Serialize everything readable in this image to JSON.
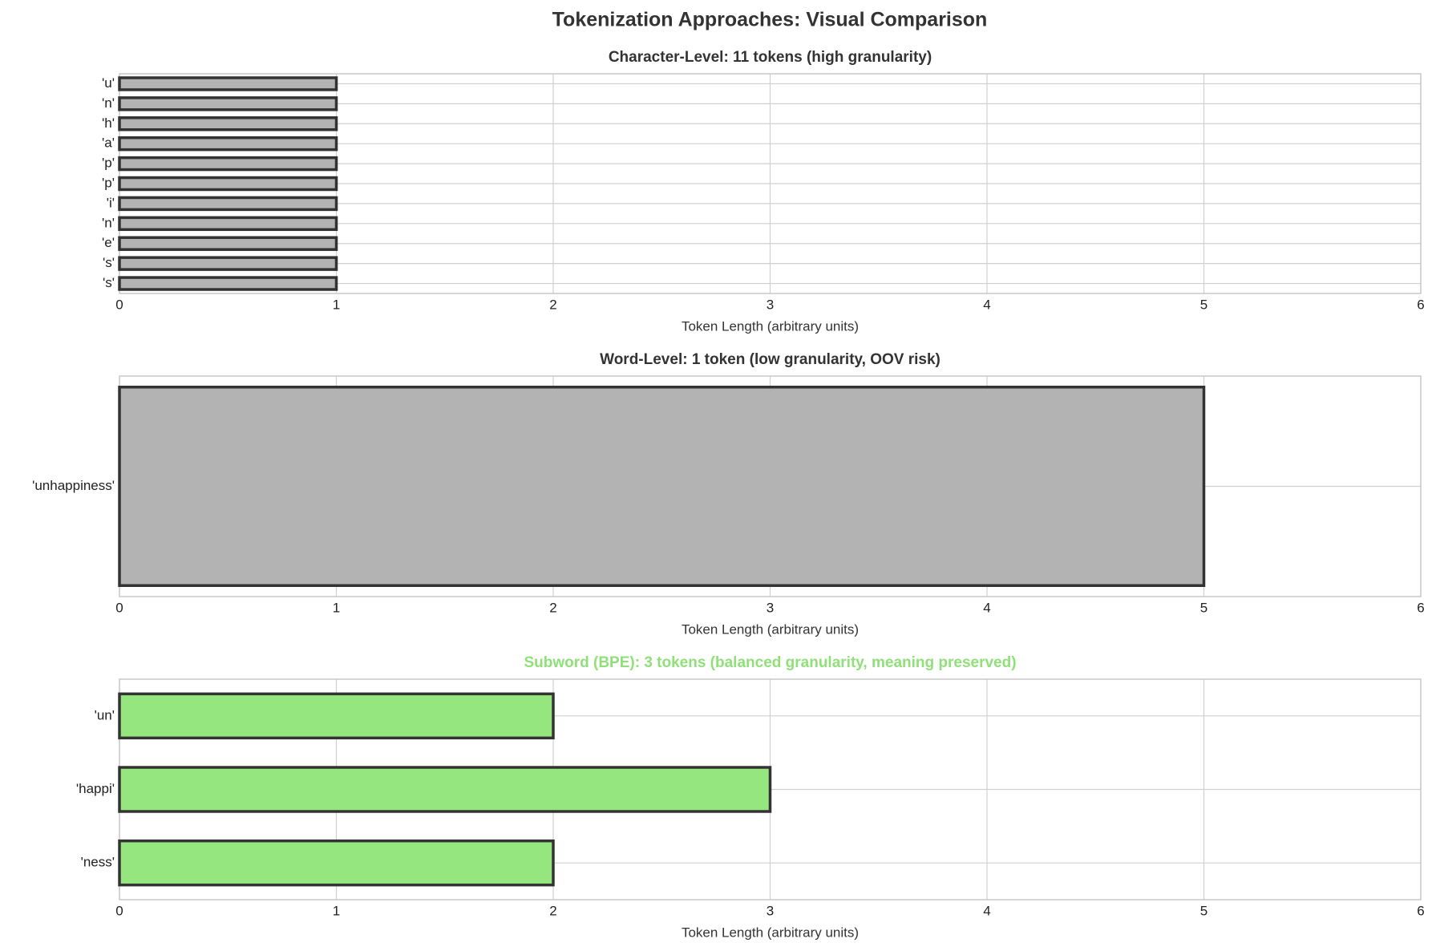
{
  "title": "Tokenization Approaches: Visual Comparison",
  "chart_data": [
    {
      "type": "barh",
      "title": "Character-Level: 11 tokens (high granularity)",
      "title_color": "#333333",
      "xlabel": "Token Length (arbitrary units)",
      "categories": [
        "'u'",
        "'n'",
        "'h'",
        "'a'",
        "'p'",
        "'p'",
        "'i'",
        "'n'",
        "'e'",
        "'s'",
        "'s'"
      ],
      "values": [
        1,
        1,
        1,
        1,
        1,
        1,
        1,
        1,
        1,
        1,
        1
      ],
      "color": "#b3b3b3",
      "edgecolor": "#333333",
      "xlim": [
        0,
        6
      ],
      "xticks": [
        0,
        1,
        2,
        3,
        4,
        5,
        6
      ],
      "grid": true
    },
    {
      "type": "barh",
      "title": "Word-Level: 1 token (low granularity, OOV risk)",
      "title_color": "#333333",
      "xlabel": "Token Length (arbitrary units)",
      "categories": [
        "'unhappiness'"
      ],
      "values": [
        5
      ],
      "color": "#b3b3b3",
      "edgecolor": "#333333",
      "xlim": [
        0,
        6
      ],
      "xticks": [
        0,
        1,
        2,
        3,
        4,
        5,
        6
      ],
      "grid": true
    },
    {
      "type": "barh",
      "title": "Subword (BPE): 3 tokens (balanced granularity, meaning preserved)",
      "title_color": "#90e07a",
      "xlabel": "Token Length (arbitrary units)",
      "categories": [
        "'un'",
        "'happi'",
        "'ness'"
      ],
      "values": [
        2,
        3,
        2
      ],
      "color": "#95e67f",
      "edgecolor": "#333333",
      "xlim": [
        0,
        6
      ],
      "xticks": [
        0,
        1,
        2,
        3,
        4,
        5,
        6
      ],
      "grid": true
    }
  ]
}
